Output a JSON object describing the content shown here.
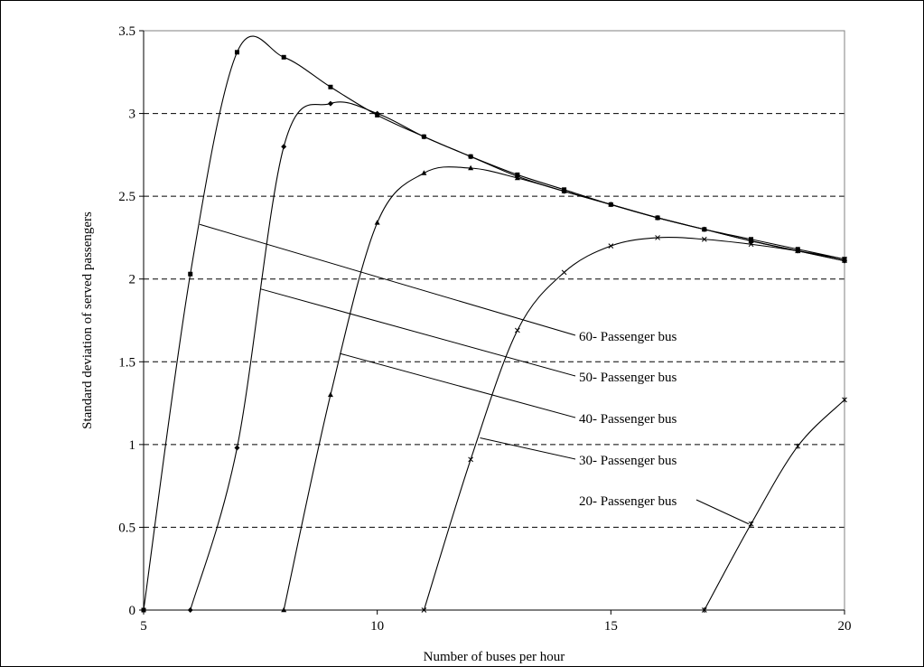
{
  "chart_data": {
    "type": "line",
    "title": "",
    "xlabel": "Number of buses per hour",
    "ylabel": "Standard deviation of served passengers",
    "xlim": [
      5,
      20
    ],
    "ylim": [
      0,
      3.5
    ],
    "x_ticks": [
      5,
      10,
      15,
      20
    ],
    "y_ticks": [
      0,
      0.5,
      1,
      1.5,
      2,
      2.5,
      3,
      3.5
    ],
    "x_tick_labels": [
      "5",
      "10",
      "15",
      "20"
    ],
    "y_tick_labels": [
      "0",
      "0.5",
      "1",
      "1.5",
      "2",
      "2.5",
      "3",
      "3.5"
    ],
    "grid": "horizontal dashed",
    "colors": {
      "line": "#000000",
      "grid": "#000000",
      "background": "#ffffff"
    },
    "series": [
      {
        "name": "60- Passenger bus",
        "marker": "square",
        "x": [
          5,
          6,
          7,
          8,
          9,
          10,
          11,
          12,
          13,
          14,
          15,
          16,
          17,
          18,
          19,
          20
        ],
        "y": [
          0,
          2.03,
          3.37,
          3.34,
          3.16,
          2.99,
          2.86,
          2.74,
          2.63,
          2.54,
          2.45,
          2.37,
          2.3,
          2.24,
          2.18,
          2.12
        ],
        "label_text": "60- Passenger bus",
        "label_points_to": [
          6.2,
          2.33
        ]
      },
      {
        "name": "50- Passenger bus",
        "marker": "diamond",
        "x": [
          6,
          7,
          8,
          9,
          10,
          11,
          12,
          13,
          14,
          15,
          16,
          17,
          18,
          19,
          20
        ],
        "y": [
          0,
          0.98,
          2.8,
          3.06,
          3.0,
          2.86,
          2.74,
          2.62,
          2.53,
          2.45,
          2.37,
          2.3,
          2.23,
          2.17,
          2.11
        ],
        "label_text": "50- Passenger bus",
        "label_points_to": [
          7.5,
          1.94
        ]
      },
      {
        "name": "40- Passenger bus",
        "marker": "triangle",
        "x": [
          8,
          9,
          10,
          11,
          12,
          13,
          14,
          15,
          16,
          17,
          18,
          19,
          20
        ],
        "y": [
          0,
          1.3,
          2.34,
          2.64,
          2.67,
          2.61,
          2.53,
          2.45,
          2.37,
          2.3,
          2.23,
          2.17,
          2.11
        ],
        "label_text": "40- Passenger bus",
        "label_points_to": [
          9.2,
          1.55
        ]
      },
      {
        "name": "30- Passenger bus",
        "marker": "x",
        "x": [
          11,
          12,
          13,
          14,
          15,
          16,
          17,
          18,
          19,
          20
        ],
        "y": [
          0,
          0.91,
          1.69,
          2.04,
          2.2,
          2.25,
          2.24,
          2.21,
          2.17,
          2.12
        ],
        "label_text": "30- Passenger bus",
        "label_points_to": [
          12.2,
          1.04
        ]
      },
      {
        "name": "20- Passenger bus",
        "marker": "star",
        "x": [
          17,
          18,
          19,
          20
        ],
        "y": [
          0,
          0.52,
          0.99,
          1.27
        ],
        "label_text": "20- Passenger bus",
        "label_points_to": [
          17.95,
          0.52
        ]
      }
    ]
  }
}
